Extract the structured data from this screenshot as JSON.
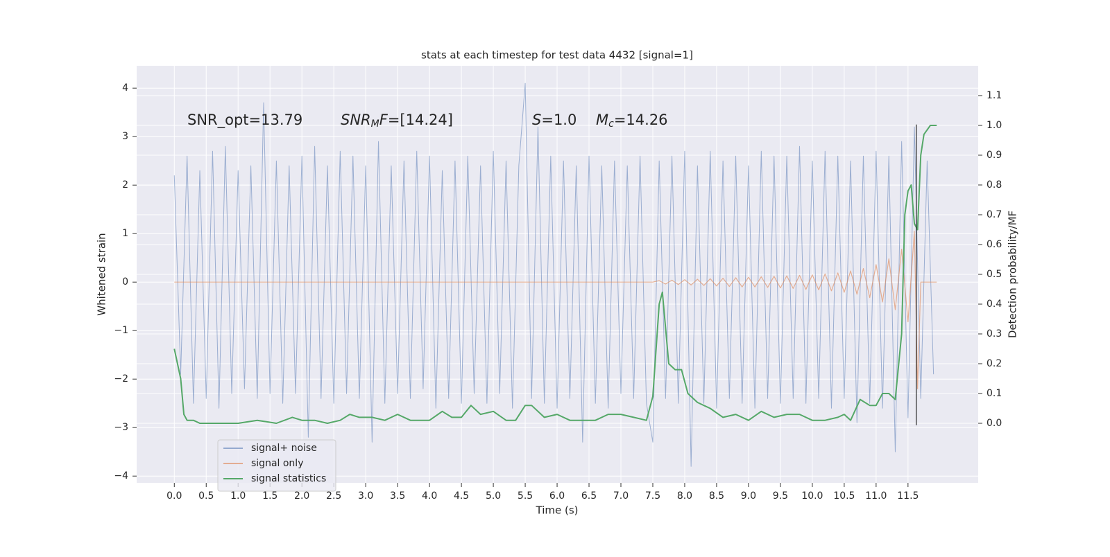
{
  "chart_data": {
    "type": "line",
    "title": "stats at each timestep for test data 4432 [signal=1]",
    "xlabel": "Time (s)",
    "ylabel": "Whitened strain",
    "y2label": "Detection probability/MF",
    "annotations": [
      [
        "SNR_opt=13.79"
      ],
      [
        "SNR",
        "M",
        "F",
        "=[14.24]"
      ],
      [
        "S",
        "=1.0"
      ],
      [
        "M",
        "c",
        "=14.26"
      ]
    ],
    "xlim": [
      -0.59,
      12.6
    ],
    "ylim": [
      -4.14,
      4.46
    ],
    "y2lim": [
      -0.2,
      1.2
    ],
    "xticks": [
      {
        "value": 0,
        "label": "0.0"
      },
      0.5,
      {
        "value": 1,
        "label": "1.0"
      },
      1.5,
      {
        "value": 2,
        "label": "2.0"
      },
      2.5,
      {
        "value": 3,
        "label": "3.0"
      },
      3.5,
      {
        "value": 4,
        "label": "4.0"
      },
      4.5,
      {
        "value": 5,
        "label": "5.0"
      },
      5.5,
      {
        "value": 6,
        "label": "6.0"
      },
      6.5,
      {
        "value": 7,
        "label": "7.0"
      },
      7.5,
      {
        "value": 8,
        "label": "8.0"
      },
      8.5,
      {
        "value": 9,
        "label": "9.0"
      },
      9.5,
      {
        "value": 10,
        "label": "10.0"
      },
      10.5,
      {
        "value": 11,
        "label": "11.0"
      },
      11.5
    ],
    "yticks": [
      {
        "value": -4,
        "label": "−4"
      },
      {
        "value": -3,
        "label": "−3"
      },
      {
        "value": -2,
        "label": "−2"
      },
      {
        "value": -1,
        "label": "−1"
      },
      0,
      1,
      2,
      3,
      4
    ],
    "y2ticks": [
      {
        "value": 0,
        "label": "0.0"
      },
      0.1,
      0.2,
      0.3,
      0.4,
      0.5,
      0.6,
      0.7,
      0.8,
      0.9,
      {
        "value": 1,
        "label": "1.0"
      },
      1.1
    ],
    "grid": true,
    "legend": "lower left",
    "vline": {
      "x": 11.63,
      "y": [
        -2.95,
        3.25
      ],
      "color": "#222222"
    },
    "series": [
      {
        "name": "signal+ noise",
        "color": "#4c72b0",
        "x": [
          0.0,
          0.1,
          0.2,
          0.3,
          0.4,
          0.5,
          0.6,
          0.7,
          0.8,
          0.9,
          1.0,
          1.1,
          1.2,
          1.3,
          1.4,
          1.5,
          1.6,
          1.7,
          1.8,
          1.9,
          2.0,
          2.1,
          2.2,
          2.3,
          2.4,
          2.5,
          2.6,
          2.7,
          2.8,
          2.9,
          3.0,
          3.1,
          3.2,
          3.3,
          3.4,
          3.5,
          3.6,
          3.7,
          3.8,
          3.9,
          4.0,
          4.1,
          4.2,
          4.3,
          4.4,
          4.5,
          4.6,
          4.7,
          4.8,
          4.9,
          5.0,
          5.1,
          5.2,
          5.3,
          5.4,
          5.5,
          5.6,
          5.7,
          5.8,
          5.9,
          6.0,
          6.1,
          6.2,
          6.3,
          6.4,
          6.5,
          6.6,
          6.7,
          6.8,
          6.9,
          7.0,
          7.1,
          7.2,
          7.3,
          7.4,
          7.5,
          7.6,
          7.7,
          7.8,
          7.9,
          8.0,
          8.1,
          8.2,
          8.3,
          8.4,
          8.5,
          8.6,
          8.7,
          8.8,
          8.9,
          9.0,
          9.1,
          9.2,
          9.3,
          9.4,
          9.5,
          9.6,
          9.7,
          9.8,
          9.9,
          10.0,
          10.1,
          10.2,
          10.3,
          10.4,
          10.5,
          10.6,
          10.7,
          10.8,
          10.9,
          11.0,
          11.1,
          11.2,
          11.3,
          11.4,
          11.5,
          11.6,
          11.7,
          11.8,
          11.9
        ],
        "values": [
          2.2,
          -1.9,
          2.6,
          -2.5,
          2.3,
          -2.4,
          2.7,
          -2.6,
          2.8,
          -2.3,
          2.3,
          -2.2,
          2.4,
          -2.4,
          3.7,
          -2.3,
          2.5,
          -2.5,
          2.4,
          -2.3,
          2.6,
          -3.2,
          2.8,
          -2.4,
          2.4,
          -2.5,
          2.7,
          -2.3,
          2.6,
          -2.4,
          2.4,
          -3.3,
          2.9,
          -2.5,
          2.4,
          -2.3,
          2.5,
          -2.4,
          2.7,
          -2.2,
          2.6,
          -2.6,
          2.3,
          -2.4,
          2.5,
          -2.5,
          2.6,
          -2.3,
          2.4,
          -2.5,
          2.7,
          -2.3,
          2.5,
          -2.6,
          2.4,
          4.1,
          -2.4,
          3.2,
          -2.5,
          2.6,
          -2.6,
          2.5,
          -2.4,
          2.4,
          -3.3,
          2.6,
          -2.5,
          2.4,
          -2.6,
          2.5,
          -2.3,
          2.4,
          -2.4,
          2.6,
          -2.5,
          -3.3,
          2.5,
          -2.4,
          2.6,
          -2.5,
          2.7,
          -3.8,
          2.4,
          -2.5,
          2.7,
          -2.6,
          2.5,
          -2.4,
          2.6,
          -2.5,
          2.4,
          -2.6,
          2.7,
          -2.4,
          2.6,
          -2.5,
          2.6,
          -2.4,
          2.8,
          -2.5,
          2.5,
          -2.4,
          2.7,
          -2.6,
          2.6,
          -2.4,
          2.5,
          -2.9,
          2.6,
          -2.5,
          2.7,
          -2.6,
          2.6,
          -3.5,
          2.9,
          -2.8,
          3.2,
          -2.4,
          2.5,
          -1.9
        ]
      },
      {
        "name": "signal only",
        "color": "#dd8452",
        "x": [
          0.0,
          7.5,
          7.6,
          7.7,
          7.8,
          7.9,
          8.0,
          8.1,
          8.2,
          8.3,
          8.4,
          8.5,
          8.6,
          8.7,
          8.8,
          8.9,
          9.0,
          9.1,
          9.2,
          9.3,
          9.4,
          9.5,
          9.6,
          9.7,
          9.8,
          9.9,
          10.0,
          10.1,
          10.2,
          10.3,
          10.4,
          10.5,
          10.6,
          10.7,
          10.8,
          10.9,
          11.0,
          11.1,
          11.2,
          11.3,
          11.4,
          11.5,
          11.6,
          11.65,
          11.7,
          11.95
        ],
        "values": [
          0,
          0,
          0.03,
          -0.04,
          0.04,
          -0.05,
          0.05,
          -0.06,
          0.06,
          -0.07,
          0.07,
          -0.08,
          0.08,
          -0.09,
          0.09,
          -0.1,
          0.1,
          -0.1,
          0.11,
          -0.11,
          0.12,
          -0.12,
          0.13,
          -0.13,
          0.14,
          -0.15,
          0.15,
          -0.16,
          0.17,
          -0.18,
          0.19,
          -0.21,
          0.23,
          -0.25,
          0.28,
          -0.32,
          0.36,
          -0.41,
          0.48,
          -0.57,
          0.68,
          -0.82,
          1.05,
          -2.2,
          0,
          0
        ]
      },
      {
        "name": "signal statistics",
        "color": "#55a868",
        "axis": "y2",
        "x": [
          0.0,
          0.1,
          0.15,
          0.2,
          0.3,
          0.4,
          0.5,
          1.0,
          1.3,
          1.6,
          1.85,
          2.0,
          2.2,
          2.4,
          2.6,
          2.75,
          2.9,
          3.1,
          3.3,
          3.5,
          3.7,
          4.0,
          4.2,
          4.35,
          4.5,
          4.65,
          4.8,
          5.0,
          5.2,
          5.35,
          5.5,
          5.6,
          5.8,
          6.0,
          6.2,
          6.4,
          6.6,
          6.8,
          7.0,
          7.2,
          7.4,
          7.5,
          7.6,
          7.65,
          7.75,
          7.85,
          7.95,
          8.05,
          8.2,
          8.4,
          8.6,
          8.8,
          9.0,
          9.2,
          9.4,
          9.6,
          9.8,
          10.0,
          10.2,
          10.4,
          10.5,
          10.6,
          10.75,
          10.9,
          11.0,
          11.1,
          11.2,
          11.3,
          11.4,
          11.45,
          11.5,
          11.55,
          11.6,
          11.65,
          11.7,
          11.75,
          11.85,
          11.95
        ],
        "values": [
          0.25,
          0.15,
          0.03,
          0.01,
          0.01,
          0.0,
          0.0,
          0.0,
          0.01,
          0.0,
          0.02,
          0.01,
          0.01,
          0.0,
          0.01,
          0.03,
          0.02,
          0.02,
          0.01,
          0.03,
          0.01,
          0.01,
          0.04,
          0.02,
          0.02,
          0.06,
          0.03,
          0.04,
          0.01,
          0.01,
          0.06,
          0.06,
          0.02,
          0.03,
          0.01,
          0.01,
          0.01,
          0.03,
          0.03,
          0.02,
          0.01,
          0.09,
          0.4,
          0.44,
          0.2,
          0.18,
          0.18,
          0.1,
          0.07,
          0.05,
          0.02,
          0.03,
          0.01,
          0.04,
          0.02,
          0.03,
          0.03,
          0.01,
          0.01,
          0.02,
          0.03,
          0.01,
          0.08,
          0.06,
          0.06,
          0.1,
          0.1,
          0.08,
          0.3,
          0.7,
          0.78,
          0.8,
          0.67,
          0.65,
          0.9,
          0.97,
          1.0,
          1.0
        ]
      }
    ]
  }
}
